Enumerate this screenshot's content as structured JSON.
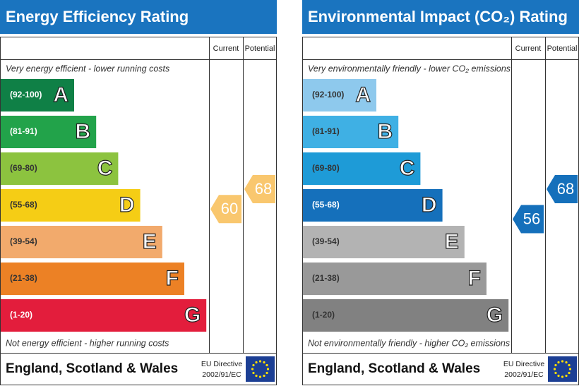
{
  "panels": [
    {
      "title": "Energy Efficiency Rating",
      "columns": [
        "Current",
        "Potential"
      ],
      "top_text": "Very energy efficient - lower running costs",
      "bottom_text": "Not energy efficient - higher running costs",
      "footer": "England, Scotland & Wales",
      "directive": [
        "EU Directive",
        "2002/91/EC"
      ],
      "bands": [
        {
          "label": "(92-100)",
          "min": 92,
          "max": 100,
          "letter": "A",
          "color": "#0f8046"
        },
        {
          "label": "(81-91)",
          "min": 81,
          "max": 91,
          "letter": "B",
          "color": "#22a34a"
        },
        {
          "label": "(69-80)",
          "min": 69,
          "max": 80,
          "letter": "C",
          "color": "#8cc33f"
        },
        {
          "label": "(55-68)",
          "min": 55,
          "max": 68,
          "letter": "D",
          "color": "#f5cd15"
        },
        {
          "label": "(39-54)",
          "min": 39,
          "max": 54,
          "letter": "E",
          "color": "#f2aa6c"
        },
        {
          "label": "(21-38)",
          "min": 21,
          "max": 38,
          "letter": "F",
          "color": "#ec8125"
        },
        {
          "label": "(1-20)",
          "min": 1,
          "max": 20,
          "letter": "G",
          "color": "#e31d3c"
        }
      ],
      "current": 60,
      "potential": 68,
      "arrow_color": "#f9c76e"
    },
    {
      "title": "Environmental Impact (CO₂) Rating",
      "columns": [
        "Current",
        "Potential"
      ],
      "top_text": "Very environmentally friendly - lower CO₂ emissions",
      "bottom_text": "Not environmentally friendly - higher CO₂ emissions",
      "footer": "England, Scotland & Wales",
      "directive": [
        "EU Directive",
        "2002/91/EC"
      ],
      "bands": [
        {
          "label": "(92-100)",
          "min": 92,
          "max": 100,
          "letter": "A",
          "color": "#8ec9ed"
        },
        {
          "label": "(81-91)",
          "min": 81,
          "max": 91,
          "letter": "B",
          "color": "#3fb0e4"
        },
        {
          "label": "(69-80)",
          "min": 69,
          "max": 80,
          "letter": "C",
          "color": "#1e9bd7"
        },
        {
          "label": "(55-68)",
          "min": 55,
          "max": 68,
          "letter": "D",
          "color": "#1570bb"
        },
        {
          "label": "(39-54)",
          "min": 39,
          "max": 54,
          "letter": "E",
          "color": "#b3b3b3"
        },
        {
          "label": "(21-38)",
          "min": 21,
          "max": 38,
          "letter": "F",
          "color": "#999999"
        },
        {
          "label": "(1-20)",
          "min": 1,
          "max": 20,
          "letter": "G",
          "color": "#818181"
        }
      ],
      "current": 56,
      "potential": 68,
      "arrow_color": "#1570bb"
    }
  ]
}
